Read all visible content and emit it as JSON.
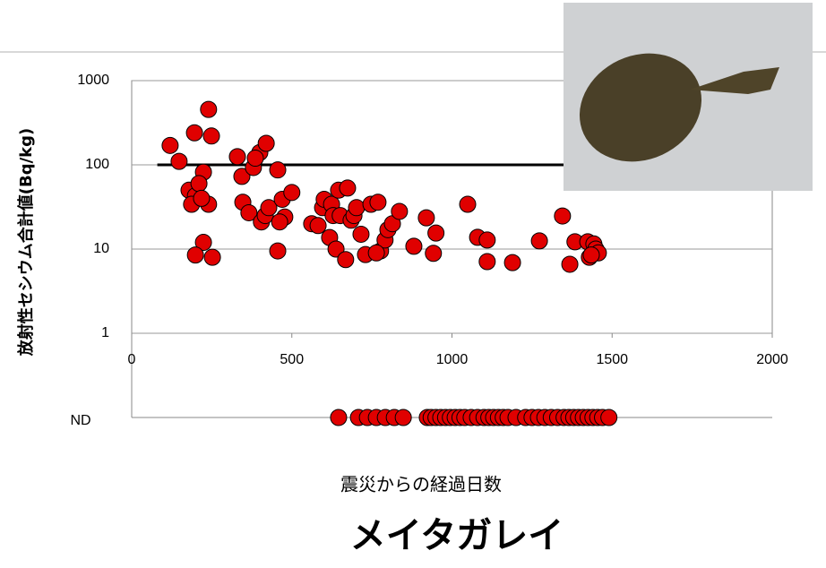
{
  "chart_data": {
    "type": "scatter",
    "title": "メイタガレイ",
    "x_label": "震災からの経過日数",
    "y_label": "放射性セシウム合計値(Bq/kg)",
    "log_y": true,
    "grid": true,
    "xlim": [
      0,
      2000
    ],
    "xticks": [
      0,
      500,
      1000,
      1500,
      2000
    ],
    "ylim": [
      1,
      1000
    ],
    "yticks": [
      1,
      10,
      100,
      1000
    ],
    "reference_line": {
      "y": 100,
      "x": [
        80,
        1500
      ],
      "color": "#000000"
    },
    "series": [
      {
        "color": "#e00000",
        "x": [
          120,
          148,
          240,
          249,
          196,
          224,
          179,
          199,
          210,
          187,
          240,
          218,
          224,
          199,
          252,
          330,
          344,
          380,
          400,
          420,
          386,
          347,
          366,
          405,
          417,
          428,
          456,
          470,
          478,
          462,
          500,
          456,
          562,
          582,
          596,
          601,
          624,
          646,
          674,
          629,
          651,
          618,
          638,
          668,
          685,
          694,
          702,
          716,
          730,
          747,
          769,
          777,
          791,
          800,
          814,
          836,
          764,
          881,
          920,
          942,
          950,
          1049,
          1080,
          1110,
          1110,
          1189,
          1273,
          1345,
          1368,
          1384,
          1424,
          1429,
          1443,
          1449,
          1457,
          1435
        ],
        "values": [
          170,
          110,
          455,
          220,
          240,
          82,
          50,
          43,
          60,
          34,
          34,
          40,
          12,
          8.5,
          8,
          125,
          73,
          93,
          140,
          180,
          120,
          36,
          27,
          21,
          25,
          31,
          87,
          39,
          24,
          21,
          47,
          9.5,
          20,
          19,
          31,
          39,
          34,
          50,
          53,
          25,
          25,
          13.7,
          10,
          7.5,
          22,
          25,
          31,
          15,
          8.6,
          34,
          36,
          9.5,
          12.8,
          17,
          20,
          28,
          9,
          10.8,
          23.5,
          8.9,
          15.5,
          34,
          13.8,
          12.8,
          7.1,
          6.9,
          12.5,
          24.7,
          6.6,
          12.2,
          12.2,
          8,
          11.5,
          10,
          9,
          8.5
        ]
      }
    ],
    "nd": {
      "label": "ND",
      "color": "#e00000",
      "x": [
        646,
        708,
        736,
        764,
        792,
        820,
        848,
        923,
        935,
        950,
        965,
        980,
        995,
        1010,
        1025,
        1040,
        1060,
        1080,
        1100,
        1115,
        1130,
        1145,
        1160,
        1175,
        1200,
        1230,
        1250,
        1270,
        1290,
        1310,
        1330,
        1350,
        1365,
        1380,
        1395,
        1410,
        1425,
        1440,
        1455,
        1470,
        1490
      ]
    }
  }
}
